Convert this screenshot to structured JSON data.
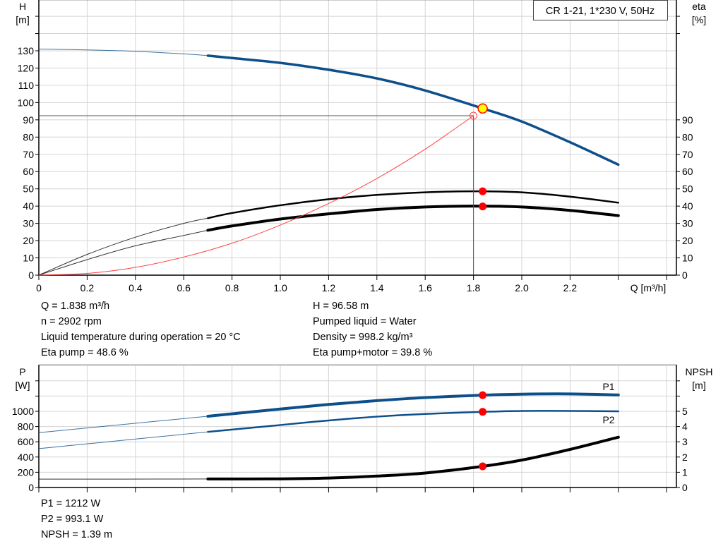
{
  "title_box": "CR 1-21, 1*230 V, 50Hz",
  "colors": {
    "pump_curve": "#0d4f8b",
    "efficiency": "#000000",
    "system_curve": "#ff4040",
    "duty_point": "#ff0000",
    "operating_point_fill": "#ffff00",
    "grid": "#d4d4d4"
  },
  "chart_data": [
    {
      "type": "line",
      "xlabel": "Q [m³/h]",
      "ylabel_left": [
        "H",
        "[m]"
      ],
      "ylabel_right": [
        "eta",
        "[%]"
      ],
      "x_ticks": [
        "0",
        "0.2",
        "0.4",
        "0.6",
        "0.8",
        "1.0",
        "1.2",
        "1.4",
        "1.6",
        "1.8",
        "2.0",
        "2.2"
      ],
      "xlim": [
        0,
        2.6
      ],
      "y_left_ticks": [
        "0",
        "10",
        "20",
        "30",
        "40",
        "50",
        "60",
        "70",
        "80",
        "90",
        "100",
        "110",
        "120",
        "130"
      ],
      "y_right_ticks": [
        "0",
        "10",
        "20",
        "30",
        "40",
        "50",
        "60",
        "70",
        "80",
        "90"
      ],
      "ylim": [
        0,
        160
      ],
      "grid": true,
      "series": [
        {
          "key": "H",
          "axis": "left",
          "color": "#0d4f8b",
          "thick_from": 0.7,
          "x": [
            0,
            0.2,
            0.4,
            0.6,
            0.7,
            0.8,
            1.0,
            1.2,
            1.4,
            1.6,
            1.838,
            2.0,
            2.2,
            2.4
          ],
          "y": [
            131,
            130.5,
            129.7,
            128.2,
            127.2,
            125.8,
            123,
            119,
            114,
            107,
            96.6,
            89,
            77,
            64
          ]
        },
        {
          "key": "eta_pump",
          "axis": "right",
          "color": "#000000",
          "thick_from": 0.7,
          "x": [
            0,
            0.2,
            0.4,
            0.6,
            0.7,
            0.8,
            1.0,
            1.2,
            1.4,
            1.6,
            1.8,
            2.0,
            2.2,
            2.4
          ],
          "y": [
            0,
            12,
            22,
            30,
            33,
            36,
            40.5,
            44,
            46.5,
            48,
            48.6,
            48,
            45.5,
            42
          ]
        },
        {
          "key": "eta_total",
          "axis": "right",
          "color": "#000000",
          "thick_from": 0.7,
          "x": [
            0,
            0.2,
            0.4,
            0.6,
            0.7,
            0.8,
            1.0,
            1.2,
            1.4,
            1.6,
            1.8,
            2.0,
            2.2,
            2.4
          ],
          "y": [
            0,
            9,
            17,
            23,
            26,
            28.5,
            32.5,
            35.5,
            38,
            39.5,
            40,
            39.5,
            37.5,
            34.5
          ]
        },
        {
          "key": "system",
          "axis": "left",
          "color": "#ff4040",
          "x": [
            0,
            0.2,
            0.4,
            0.6,
            0.8,
            1.0,
            1.2,
            1.4,
            1.6,
            1.8
          ],
          "y": [
            0,
            1,
            4.5,
            10.5,
            18.5,
            29,
            41.5,
            56,
            73,
            92.4
          ]
        }
      ],
      "duty_point": {
        "Q": 1.8,
        "H": 92.4
      },
      "operating_point": {
        "Q": 1.838,
        "H": 96.58,
        "eta_pump": 48.6,
        "eta_total": 39.8
      }
    },
    {
      "type": "line",
      "ylabel_left": [
        "P",
        "[W]"
      ],
      "ylabel_right": [
        "NPSH",
        "[m]"
      ],
      "xlim": [
        0,
        2.6
      ],
      "y_left_ticks": [
        "0",
        "200",
        "400",
        "600",
        "800",
        "1000"
      ],
      "y_right_ticks": [
        "0",
        "1",
        "2",
        "3",
        "4",
        "5"
      ],
      "ylim": [
        0,
        1600
      ],
      "grid": true,
      "series": [
        {
          "key": "P1",
          "name": "P1",
          "axis": "left",
          "color": "#0d4f8b",
          "thick_from": 0.7,
          "thick": 4,
          "x": [
            0,
            0.35,
            0.7,
            1.0,
            1.2,
            1.4,
            1.6,
            1.838,
            2.0,
            2.2,
            2.4
          ],
          "y": [
            720,
            828,
            935,
            1030,
            1090,
            1140,
            1180,
            1212,
            1225,
            1228,
            1215
          ]
        },
        {
          "key": "P2",
          "name": "P2",
          "axis": "left",
          "color": "#0d4f8b",
          "thick_from": 0.7,
          "thick": 2.5,
          "x": [
            0,
            0.35,
            0.7,
            1.0,
            1.2,
            1.4,
            1.6,
            1.838,
            2.0,
            2.2,
            2.4
          ],
          "y": [
            510,
            620,
            730,
            820,
            880,
            930,
            965,
            993,
            1005,
            1005,
            1000
          ]
        },
        {
          "key": "NPSH",
          "axis": "right",
          "color": "#000000",
          "thick_from": 0.7,
          "thick": 4,
          "x": [
            0,
            0.35,
            0.7,
            1.0,
            1.2,
            1.4,
            1.6,
            1.838,
            2.0,
            2.2,
            2.4
          ],
          "y": [
            0.55,
            0.55,
            0.56,
            0.57,
            0.62,
            0.75,
            0.95,
            1.39,
            1.8,
            2.5,
            3.3
          ]
        }
      ],
      "operating_point": {
        "Q": 1.838,
        "P1": 1212,
        "P2": 993.1,
        "NPSH": 1.39
      }
    }
  ],
  "info_top_left": [
    "Q = 1.838 m³/h",
    "n = 2902 rpm",
    "Liquid temperature during operation = 20 °C",
    "Eta pump = 48.6 %"
  ],
  "info_top_right": [
    "H = 96.58 m",
    "Pumped liquid = Water",
    "Density = 998.2 kg/m³",
    "Eta pump+motor = 39.8 %"
  ],
  "info_bottom": [
    "P1 = 1212 W",
    "P2 = 993.1 W",
    "NPSH = 1.39 m"
  ]
}
